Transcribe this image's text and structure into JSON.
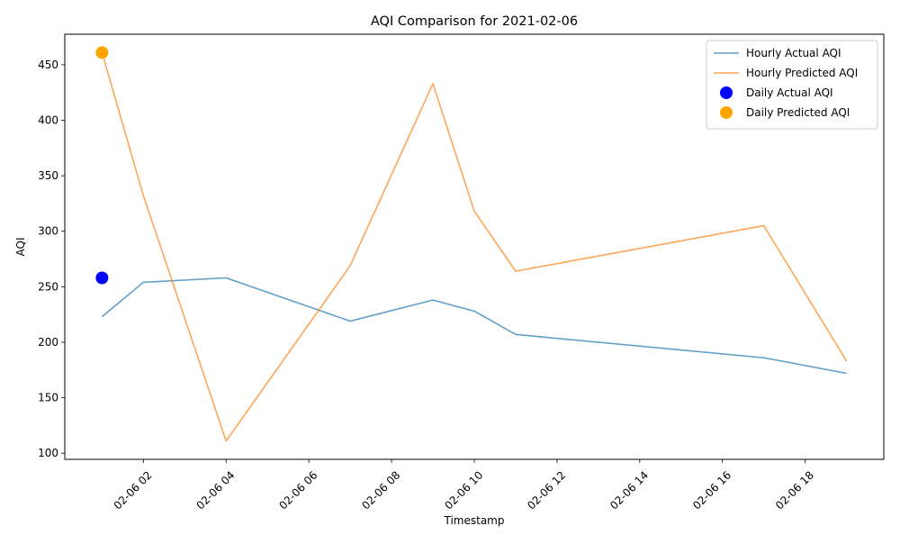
{
  "chart_data": {
    "type": "line",
    "title": "AQI Comparison for 2021-02-06",
    "xlabel": "Timestamp",
    "ylabel": "AQI",
    "x_unit": "hour of 2021-02-06",
    "xlim": [
      0.1,
      19.9
    ],
    "ylim": [
      94.5,
      477.5
    ],
    "x_ticks": [
      {
        "value": 2,
        "label": "02-06 02"
      },
      {
        "value": 4,
        "label": "02-06 04"
      },
      {
        "value": 6,
        "label": "02-06 06"
      },
      {
        "value": 8,
        "label": "02-06 08"
      },
      {
        "value": 10,
        "label": "02-06 10"
      },
      {
        "value": 12,
        "label": "02-06 12"
      },
      {
        "value": 14,
        "label": "02-06 14"
      },
      {
        "value": 16,
        "label": "02-06 16"
      },
      {
        "value": 18,
        "label": "02-06 18"
      }
    ],
    "y_ticks": [
      100,
      150,
      200,
      250,
      300,
      350,
      400,
      450
    ],
    "grid": false,
    "legend_position": "top-right",
    "series": [
      {
        "name": "Hourly Actual AQI",
        "kind": "line",
        "color": "#1f77b4",
        "opacity": 0.7,
        "x": [
          1,
          2,
          4,
          7,
          9,
          10,
          11,
          17,
          19
        ],
        "y": [
          223,
          254,
          258,
          219,
          238,
          228,
          207,
          186,
          172
        ]
      },
      {
        "name": "Hourly Predicted AQI",
        "kind": "line",
        "color": "#ff7f0e",
        "opacity": 0.7,
        "x": [
          1,
          2,
          4,
          7,
          9,
          10,
          11,
          17,
          19
        ],
        "y": [
          461,
          332,
          111,
          269,
          433,
          318,
          264,
          305,
          183
        ]
      },
      {
        "name": "Daily Actual AQI",
        "kind": "scatter",
        "color": "#0000ff",
        "x": [
          1
        ],
        "y": [
          258
        ]
      },
      {
        "name": "Daily Predicted AQI",
        "kind": "scatter",
        "color": "#ffa500",
        "x": [
          1
        ],
        "y": [
          461
        ]
      }
    ]
  }
}
